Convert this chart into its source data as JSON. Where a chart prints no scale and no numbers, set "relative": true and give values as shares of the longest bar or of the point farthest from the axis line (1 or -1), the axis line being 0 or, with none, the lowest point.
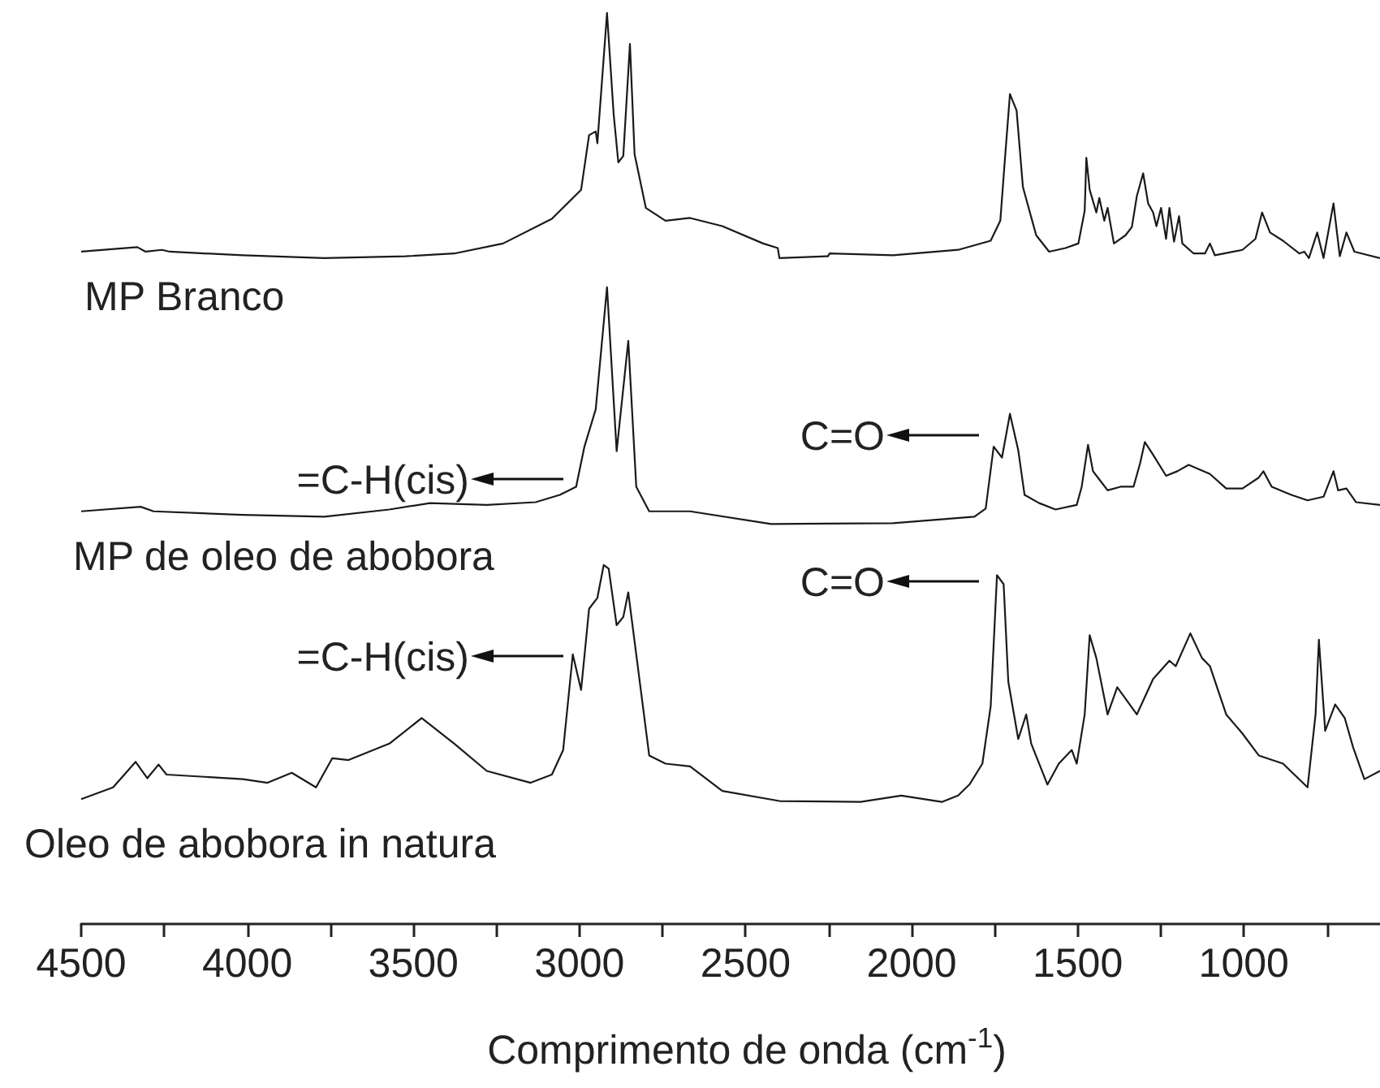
{
  "chart_data": {
    "type": "line",
    "relative": true,
    "marker": "none",
    "xlabel": "Comprimento de onda (cm$^{-1}$)",
    "xlim": [
      4500,
      590
    ],
    "xticks": [
      4500,
      {
        "value": 4250,
        "label": null
      },
      4000,
      {
        "value": 3750,
        "label": null
      },
      3500,
      {
        "value": 3250,
        "label": null
      },
      3000,
      {
        "value": 2750,
        "label": null
      },
      2500,
      {
        "value": 2250,
        "label": null
      },
      2000,
      {
        "value": 1750,
        "label": null
      },
      1500,
      {
        "value": 1250,
        "label": null
      },
      1000,
      {
        "value": 750,
        "label": null
      }
    ],
    "series": [
      {
        "name": "MP Branco",
        "color": "#1a1a1a",
        "x": [
          4500,
          4331,
          4306,
          4257,
          4233,
          4013,
          3768,
          3524,
          3377,
          3230,
          3083,
          2995,
          2971,
          2951,
          2946,
          2917,
          2897,
          2883,
          2868,
          2848,
          2834,
          2800,
          2741,
          2667,
          2570,
          2447,
          2403,
          2398,
          2252,
          2247,
          2056,
          1860,
          1762,
          1733,
          1718,
          1704,
          1684,
          1665,
          1625,
          1586,
          1537,
          1498,
          1479,
          1474,
          1464,
          1444,
          1435,
          1420,
          1410,
          1391,
          1356,
          1337,
          1322,
          1303,
          1288,
          1273,
          1263,
          1249,
          1234,
          1224,
          1210,
          1195,
          1185,
          1151,
          1117,
          1102,
          1087,
          1004,
          965,
          945,
          921,
          882,
          833,
          818,
          804,
          779,
          760,
          730,
          711,
          691,
          667,
          590
        ],
        "values": [
          0.738,
          0.743,
          0.738,
          0.74,
          0.738,
          0.734,
          0.731,
          0.733,
          0.736,
          0.747,
          0.774,
          0.806,
          0.866,
          0.87,
          0.857,
          1.0,
          0.889,
          0.836,
          0.843,
          0.966,
          0.845,
          0.786,
          0.772,
          0.775,
          0.766,
          0.747,
          0.742,
          0.731,
          0.733,
          0.736,
          0.734,
          0.74,
          0.75,
          0.772,
          0.845,
          0.911,
          0.893,
          0.809,
          0.756,
          0.738,
          0.742,
          0.747,
          0.783,
          0.841,
          0.806,
          0.781,
          0.797,
          0.772,
          0.786,
          0.747,
          0.756,
          0.765,
          0.799,
          0.824,
          0.791,
          0.781,
          0.766,
          0.786,
          0.752,
          0.786,
          0.749,
          0.777,
          0.747,
          0.736,
          0.736,
          0.747,
          0.734,
          0.74,
          0.752,
          0.781,
          0.759,
          0.75,
          0.736,
          0.738,
          0.731,
          0.759,
          0.731,
          0.791,
          0.733,
          0.759,
          0.738,
          0.731
        ]
      },
      {
        "name": "MP de oleo de abobora",
        "color": "#1a1a1a",
        "x": [
          4500,
          4321,
          4282,
          4013,
          3768,
          3572,
          3450,
          3279,
          3132,
          3059,
          3010,
          2985,
          2951,
          2917,
          2888,
          2853,
          2829,
          2790,
          2667,
          2423,
          2056,
          1811,
          1777,
          1753,
          1728,
          1704,
          1679,
          1660,
          1616,
          1567,
          1503,
          1488,
          1469,
          1454,
          1435,
          1410,
          1371,
          1332,
          1312,
          1298,
          1273,
          1234,
          1200,
          1166,
          1102,
          1053,
          1004,
          955,
          941,
          916,
          857,
          808,
          760,
          730,
          716,
          691,
          662,
          590
        ],
        "values": [
          0.453,
          0.458,
          0.453,
          0.449,
          0.447,
          0.455,
          0.462,
          0.46,
          0.463,
          0.471,
          0.48,
          0.524,
          0.565,
          0.699,
          0.519,
          0.64,
          0.48,
          0.453,
          0.453,
          0.439,
          0.44,
          0.447,
          0.456,
          0.524,
          0.512,
          0.56,
          0.52,
          0.471,
          0.462,
          0.455,
          0.46,
          0.48,
          0.526,
          0.497,
          0.488,
          0.476,
          0.48,
          0.48,
          0.506,
          0.529,
          0.515,
          0.492,
          0.497,
          0.504,
          0.494,
          0.478,
          0.478,
          0.49,
          0.497,
          0.48,
          0.471,
          0.465,
          0.469,
          0.497,
          0.476,
          0.478,
          0.463,
          0.46
        ]
      },
      {
        "name": "Oleo de abobora in natura",
        "color": "#1a1a1a",
        "x": [
          4500,
          4404,
          4336,
          4301,
          4267,
          4243,
          4013,
          3939,
          3866,
          3793,
          3744,
          3695,
          3572,
          3475,
          3377,
          3279,
          3147,
          3083,
          3049,
          3020,
          2995,
          2971,
          2946,
          2927,
          2912,
          2888,
          2868,
          2853,
          2834,
          2790,
          2741,
          2667,
          2570,
          2398,
          2154,
          2031,
          1909,
          1860,
          1826,
          1787,
          1762,
          1743,
          1723,
          1709,
          1679,
          1655,
          1640,
          1591,
          1557,
          1518,
          1503,
          1479,
          1464,
          1444,
          1410,
          1381,
          1322,
          1273,
          1224,
          1205,
          1161,
          1126,
          1102,
          1053,
          1004,
          955,
          882,
          808,
          784,
          774,
          755,
          725,
          696,
          671,
          637,
          590
        ],
        "values": [
          0.137,
          0.15,
          0.178,
          0.16,
          0.175,
          0.164,
          0.159,
          0.155,
          0.166,
          0.15,
          0.182,
          0.18,
          0.198,
          0.226,
          0.198,
          0.168,
          0.155,
          0.164,
          0.191,
          0.296,
          0.257,
          0.346,
          0.358,
          0.394,
          0.39,
          0.328,
          0.337,
          0.364,
          0.31,
          0.185,
          0.176,
          0.173,
          0.146,
          0.135,
          0.134,
          0.141,
          0.134,
          0.141,
          0.153,
          0.176,
          0.239,
          0.383,
          0.373,
          0.266,
          0.203,
          0.23,
          0.198,
          0.153,
          0.176,
          0.191,
          0.176,
          0.23,
          0.317,
          0.292,
          0.23,
          0.26,
          0.23,
          0.269,
          0.289,
          0.283,
          0.319,
          0.292,
          0.283,
          0.23,
          0.209,
          0.185,
          0.176,
          0.15,
          0.23,
          0.312,
          0.212,
          0.241,
          0.226,
          0.194,
          0.159,
          0.168
        ]
      }
    ],
    "annotations": [
      "=C-H(cis)",
      "C=O",
      "=C-H(cis)",
      "C=O"
    ]
  }
}
